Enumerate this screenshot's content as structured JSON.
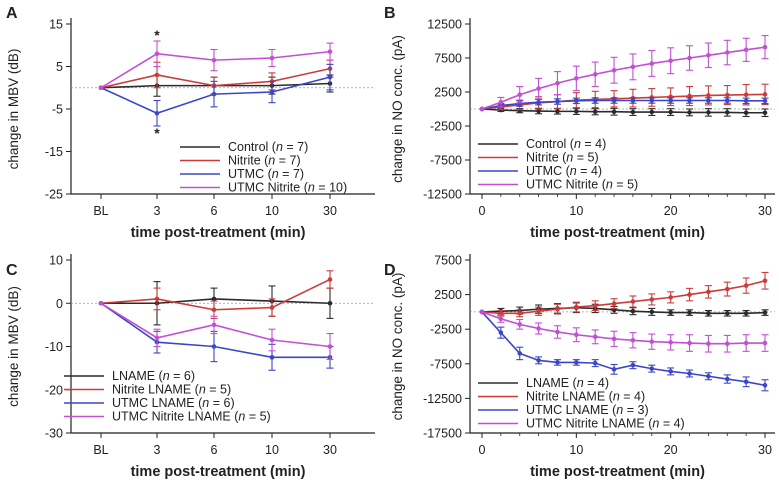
{
  "chart_data": [
    {
      "panel": "A",
      "type": "line",
      "xlabel": "time post-treatment (min)",
      "ylabel": "change in MBV (dB)",
      "categories": [
        "BL",
        "3",
        "6",
        "10",
        "30"
      ],
      "yticks": [
        15,
        5,
        -5,
        -15,
        -25
      ],
      "ylim": [
        -25,
        15
      ],
      "baseline": 0,
      "annotations": [
        "*",
        "*"
      ],
      "series": [
        {
          "name": "Control",
          "n": "(n = 7)",
          "color": "#2b2b2b",
          "values": [
            0,
            0.5,
            0.5,
            0.5,
            1
          ],
          "err": [
            0,
            2.5,
            2,
            2,
            2
          ]
        },
        {
          "name": "Nitrite",
          "n": "(n = 7)",
          "color": "#cc3b3b",
          "values": [
            0,
            3,
            0.5,
            1.5,
            4.5
          ],
          "err": [
            0,
            3,
            2,
            2,
            2
          ]
        },
        {
          "name": "UTMC",
          "n": "(n = 7)",
          "color": "#3c46c8",
          "values": [
            0,
            -6,
            -1.5,
            -1,
            2.5
          ],
          "err": [
            0,
            3,
            3,
            2.5,
            3
          ]
        },
        {
          "name": "UTMC Nitrite",
          "n": "(n = 10)",
          "color": "#c24fd6",
          "values": [
            0,
            8,
            6.5,
            7,
            8.5
          ],
          "err": [
            0,
            3,
            2.5,
            2,
            2
          ]
        }
      ]
    },
    {
      "panel": "B",
      "type": "line",
      "xlabel": "time post-treatment (min)",
      "ylabel": "change in NO conc. (pA)",
      "xticks": [
        0,
        10,
        20,
        30
      ],
      "yticks": [
        12500,
        7500,
        2500,
        -2500,
        -7500,
        -12500
      ],
      "ylim": [
        -12500,
        12500
      ],
      "xlim": [
        -1,
        30
      ],
      "x": [
        0,
        2,
        4,
        6,
        8,
        10,
        12,
        14,
        16,
        18,
        20,
        22,
        24,
        26,
        28,
        30
      ],
      "series": [
        {
          "name": "Control",
          "n": "(n = 4)",
          "color": "#2b2b2b",
          "values": [
            0,
            -150,
            -250,
            -300,
            -350,
            -350,
            -400,
            -400,
            -450,
            -450,
            -450,
            -500,
            -500,
            -500,
            -550,
            -550
          ],
          "err": [
            0,
            200,
            300,
            400,
            400,
            450,
            450,
            500,
            500,
            500,
            500,
            500,
            550,
            550,
            550,
            550
          ]
        },
        {
          "name": "Nitrite",
          "n": "(n = 5)",
          "color": "#cc3b3b",
          "values": [
            0,
            300,
            600,
            900,
            1100,
            1300,
            1400,
            1500,
            1600,
            1700,
            1800,
            1900,
            2000,
            2050,
            2100,
            2150
          ],
          "err": [
            0,
            400,
            700,
            900,
            1000,
            1100,
            1200,
            1200,
            1300,
            1300,
            1300,
            1400,
            1400,
            1400,
            1500,
            1500
          ]
        },
        {
          "name": "UTMC",
          "n": "(n = 4)",
          "color": "#3c46c8",
          "values": [
            0,
            500,
            800,
            1000,
            1100,
            1200,
            1250,
            1250,
            1250,
            1250,
            1250,
            1250,
            1250,
            1250,
            1200,
            1200
          ],
          "err": [
            0,
            300,
            400,
            400,
            400,
            400,
            400,
            400,
            400,
            400,
            400,
            400,
            400,
            400,
            400,
            400
          ]
        },
        {
          "name": "UTMC Nitrite",
          "n": "(n = 5)",
          "color": "#c24fd6",
          "values": [
            0,
            1000,
            2100,
            3000,
            3800,
            4500,
            5100,
            5700,
            6200,
            6700,
            7100,
            7500,
            7900,
            8300,
            8700,
            9100
          ],
          "err": [
            0,
            700,
            1200,
            1500,
            1700,
            1800,
            1800,
            1900,
            1900,
            1900,
            1900,
            1800,
            1800,
            1800,
            1700,
            1700
          ]
        }
      ]
    },
    {
      "panel": "C",
      "type": "line",
      "xlabel": "time post-treatment (min)",
      "ylabel": "change in MBV (dB)",
      "categories": [
        "BL",
        "3",
        "6",
        "10",
        "30"
      ],
      "yticks": [
        10,
        0,
        -10,
        -20,
        -30
      ],
      "ylim": [
        -30,
        10
      ],
      "baseline": 0,
      "series": [
        {
          "name": "LNAME",
          "n": "(n = 6)",
          "color": "#2b2b2b",
          "values": [
            0,
            0,
            1,
            0.5,
            0
          ],
          "err": [
            0,
            5,
            2.5,
            3.5,
            3.5
          ]
        },
        {
          "name": "Nitrite LNAME",
          "n": "(n = 5)",
          "color": "#cc3b3b",
          "values": [
            0,
            1,
            -1.5,
            -1,
            5.5
          ],
          "err": [
            0,
            2.5,
            2,
            2,
            2
          ]
        },
        {
          "name": "UTMC LNAME",
          "n": "(n = 6)",
          "color": "#3c46c8",
          "values": [
            0,
            -9,
            -10,
            -12.5,
            -12.5
          ],
          "err": [
            0,
            2.5,
            3.5,
            3,
            2.5
          ]
        },
        {
          "name": "UTMC Nitrite LNAME",
          "n": "(n = 5)",
          "color": "#c24fd6",
          "values": [
            0,
            -8,
            -5,
            -8.5,
            -10
          ],
          "err": [
            0,
            2,
            2,
            2.5,
            3
          ]
        }
      ]
    },
    {
      "panel": "D",
      "type": "line",
      "xlabel": "time post-treatment (min)",
      "ylabel": "change in NO conc. (pA)",
      "xticks": [
        0,
        10,
        20,
        30
      ],
      "yticks": [
        7500,
        2500,
        -2500,
        -7500,
        -12500,
        -17500
      ],
      "ylim": [
        -17500,
        7500
      ],
      "xlim": [
        -1,
        30
      ],
      "x": [
        0,
        2,
        4,
        6,
        8,
        10,
        12,
        14,
        16,
        18,
        20,
        22,
        24,
        26,
        28,
        30
      ],
      "series": [
        {
          "name": "LNAME",
          "n": "(n = 4)",
          "color": "#2b2b2b",
          "values": [
            0,
            100,
            200,
            400,
            500,
            600,
            500,
            300,
            100,
            0,
            -100,
            -100,
            -200,
            -200,
            -200,
            -100
          ],
          "err": [
            0,
            400,
            500,
            600,
            700,
            700,
            600,
            500,
            500,
            500,
            400,
            400,
            400,
            400,
            400,
            400
          ]
        },
        {
          "name": "Nitrite LNAME",
          "n": "(n = 4)",
          "color": "#cc3b3b",
          "values": [
            0,
            -200,
            -200,
            100,
            400,
            700,
            900,
            1200,
            1500,
            1800,
            2100,
            2500,
            2900,
            3300,
            3800,
            4500
          ],
          "err": [
            0,
            400,
            500,
            600,
            700,
            700,
            700,
            700,
            800,
            800,
            800,
            900,
            900,
            1000,
            1100,
            1200
          ]
        },
        {
          "name": "UTMC LNAME",
          "n": "(n = 3)",
          "color": "#3c46c8",
          "values": [
            0,
            -3000,
            -6000,
            -7000,
            -7300,
            -7300,
            -7400,
            -8300,
            -7700,
            -8200,
            -8600,
            -8900,
            -9300,
            -9700,
            -10100,
            -10600
          ],
          "err": [
            0,
            800,
            900,
            500,
            400,
            400,
            500,
            700,
            500,
            500,
            500,
            500,
            500,
            600,
            700,
            800
          ]
        },
        {
          "name": "UTMC Nitrite LNAME",
          "n": "(n = 4)",
          "color": "#c24fd6",
          "values": [
            0,
            -1000,
            -1800,
            -2400,
            -2900,
            -3300,
            -3600,
            -3900,
            -4100,
            -4300,
            -4400,
            -4500,
            -4600,
            -4600,
            -4500,
            -4500
          ],
          "err": [
            0,
            500,
            700,
            800,
            900,
            1000,
            1000,
            1100,
            1100,
            1100,
            1100,
            1200,
            1200,
            1200,
            1200,
            1200
          ]
        }
      ]
    }
  ]
}
